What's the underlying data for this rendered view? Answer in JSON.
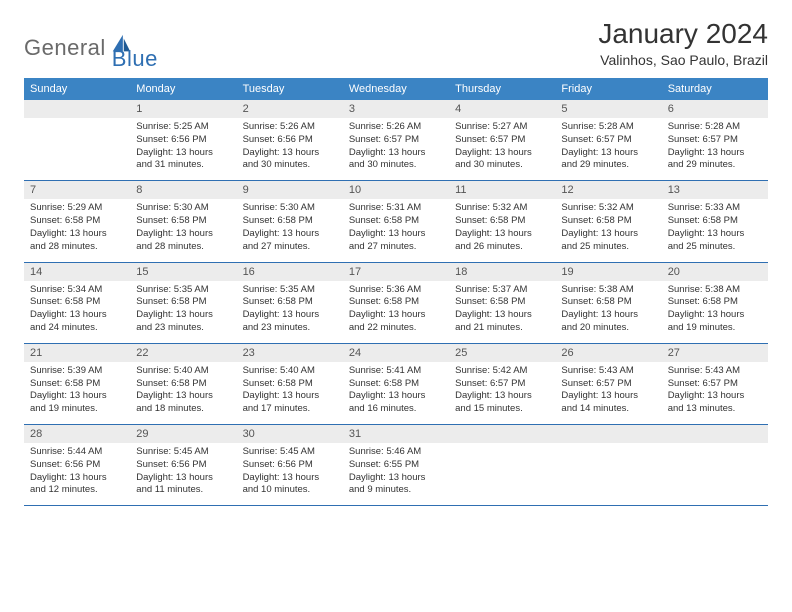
{
  "logo": {
    "part1": "General",
    "part2": "Blue"
  },
  "title": "January 2024",
  "location": "Valinhos, Sao Paulo, Brazil",
  "colors": {
    "header_bg": "#3b84c4",
    "header_text": "#ffffff",
    "daynum_bg": "#ececec",
    "rule": "#2f6fb2",
    "logo_gray": "#6a6a6a",
    "logo_blue": "#2f6fb2"
  },
  "weekdays": [
    "Sunday",
    "Monday",
    "Tuesday",
    "Wednesday",
    "Thursday",
    "Friday",
    "Saturday"
  ],
  "weeks": [
    {
      "nums": [
        "",
        "1",
        "2",
        "3",
        "4",
        "5",
        "6"
      ],
      "cells": [
        null,
        {
          "sunrise": "Sunrise: 5:25 AM",
          "sunset": "Sunset: 6:56 PM",
          "day1": "Daylight: 13 hours",
          "day2": "and 31 minutes."
        },
        {
          "sunrise": "Sunrise: 5:26 AM",
          "sunset": "Sunset: 6:56 PM",
          "day1": "Daylight: 13 hours",
          "day2": "and 30 minutes."
        },
        {
          "sunrise": "Sunrise: 5:26 AM",
          "sunset": "Sunset: 6:57 PM",
          "day1": "Daylight: 13 hours",
          "day2": "and 30 minutes."
        },
        {
          "sunrise": "Sunrise: 5:27 AM",
          "sunset": "Sunset: 6:57 PM",
          "day1": "Daylight: 13 hours",
          "day2": "and 30 minutes."
        },
        {
          "sunrise": "Sunrise: 5:28 AM",
          "sunset": "Sunset: 6:57 PM",
          "day1": "Daylight: 13 hours",
          "day2": "and 29 minutes."
        },
        {
          "sunrise": "Sunrise: 5:28 AM",
          "sunset": "Sunset: 6:57 PM",
          "day1": "Daylight: 13 hours",
          "day2": "and 29 minutes."
        }
      ]
    },
    {
      "nums": [
        "7",
        "8",
        "9",
        "10",
        "11",
        "12",
        "13"
      ],
      "cells": [
        {
          "sunrise": "Sunrise: 5:29 AM",
          "sunset": "Sunset: 6:58 PM",
          "day1": "Daylight: 13 hours",
          "day2": "and 28 minutes."
        },
        {
          "sunrise": "Sunrise: 5:30 AM",
          "sunset": "Sunset: 6:58 PM",
          "day1": "Daylight: 13 hours",
          "day2": "and 28 minutes."
        },
        {
          "sunrise": "Sunrise: 5:30 AM",
          "sunset": "Sunset: 6:58 PM",
          "day1": "Daylight: 13 hours",
          "day2": "and 27 minutes."
        },
        {
          "sunrise": "Sunrise: 5:31 AM",
          "sunset": "Sunset: 6:58 PM",
          "day1": "Daylight: 13 hours",
          "day2": "and 27 minutes."
        },
        {
          "sunrise": "Sunrise: 5:32 AM",
          "sunset": "Sunset: 6:58 PM",
          "day1": "Daylight: 13 hours",
          "day2": "and 26 minutes."
        },
        {
          "sunrise": "Sunrise: 5:32 AM",
          "sunset": "Sunset: 6:58 PM",
          "day1": "Daylight: 13 hours",
          "day2": "and 25 minutes."
        },
        {
          "sunrise": "Sunrise: 5:33 AM",
          "sunset": "Sunset: 6:58 PM",
          "day1": "Daylight: 13 hours",
          "day2": "and 25 minutes."
        }
      ]
    },
    {
      "nums": [
        "14",
        "15",
        "16",
        "17",
        "18",
        "19",
        "20"
      ],
      "cells": [
        {
          "sunrise": "Sunrise: 5:34 AM",
          "sunset": "Sunset: 6:58 PM",
          "day1": "Daylight: 13 hours",
          "day2": "and 24 minutes."
        },
        {
          "sunrise": "Sunrise: 5:35 AM",
          "sunset": "Sunset: 6:58 PM",
          "day1": "Daylight: 13 hours",
          "day2": "and 23 minutes."
        },
        {
          "sunrise": "Sunrise: 5:35 AM",
          "sunset": "Sunset: 6:58 PM",
          "day1": "Daylight: 13 hours",
          "day2": "and 23 minutes."
        },
        {
          "sunrise": "Sunrise: 5:36 AM",
          "sunset": "Sunset: 6:58 PM",
          "day1": "Daylight: 13 hours",
          "day2": "and 22 minutes."
        },
        {
          "sunrise": "Sunrise: 5:37 AM",
          "sunset": "Sunset: 6:58 PM",
          "day1": "Daylight: 13 hours",
          "day2": "and 21 minutes."
        },
        {
          "sunrise": "Sunrise: 5:38 AM",
          "sunset": "Sunset: 6:58 PM",
          "day1": "Daylight: 13 hours",
          "day2": "and 20 minutes."
        },
        {
          "sunrise": "Sunrise: 5:38 AM",
          "sunset": "Sunset: 6:58 PM",
          "day1": "Daylight: 13 hours",
          "day2": "and 19 minutes."
        }
      ]
    },
    {
      "nums": [
        "21",
        "22",
        "23",
        "24",
        "25",
        "26",
        "27"
      ],
      "cells": [
        {
          "sunrise": "Sunrise: 5:39 AM",
          "sunset": "Sunset: 6:58 PM",
          "day1": "Daylight: 13 hours",
          "day2": "and 19 minutes."
        },
        {
          "sunrise": "Sunrise: 5:40 AM",
          "sunset": "Sunset: 6:58 PM",
          "day1": "Daylight: 13 hours",
          "day2": "and 18 minutes."
        },
        {
          "sunrise": "Sunrise: 5:40 AM",
          "sunset": "Sunset: 6:58 PM",
          "day1": "Daylight: 13 hours",
          "day2": "and 17 minutes."
        },
        {
          "sunrise": "Sunrise: 5:41 AM",
          "sunset": "Sunset: 6:58 PM",
          "day1": "Daylight: 13 hours",
          "day2": "and 16 minutes."
        },
        {
          "sunrise": "Sunrise: 5:42 AM",
          "sunset": "Sunset: 6:57 PM",
          "day1": "Daylight: 13 hours",
          "day2": "and 15 minutes."
        },
        {
          "sunrise": "Sunrise: 5:43 AM",
          "sunset": "Sunset: 6:57 PM",
          "day1": "Daylight: 13 hours",
          "day2": "and 14 minutes."
        },
        {
          "sunrise": "Sunrise: 5:43 AM",
          "sunset": "Sunset: 6:57 PM",
          "day1": "Daylight: 13 hours",
          "day2": "and 13 minutes."
        }
      ]
    },
    {
      "nums": [
        "28",
        "29",
        "30",
        "31",
        "",
        "",
        ""
      ],
      "cells": [
        {
          "sunrise": "Sunrise: 5:44 AM",
          "sunset": "Sunset: 6:56 PM",
          "day1": "Daylight: 13 hours",
          "day2": "and 12 minutes."
        },
        {
          "sunrise": "Sunrise: 5:45 AM",
          "sunset": "Sunset: 6:56 PM",
          "day1": "Daylight: 13 hours",
          "day2": "and 11 minutes."
        },
        {
          "sunrise": "Sunrise: 5:45 AM",
          "sunset": "Sunset: 6:56 PM",
          "day1": "Daylight: 13 hours",
          "day2": "and 10 minutes."
        },
        {
          "sunrise": "Sunrise: 5:46 AM",
          "sunset": "Sunset: 6:55 PM",
          "day1": "Daylight: 13 hours",
          "day2": "and 9 minutes."
        },
        null,
        null,
        null
      ]
    }
  ]
}
